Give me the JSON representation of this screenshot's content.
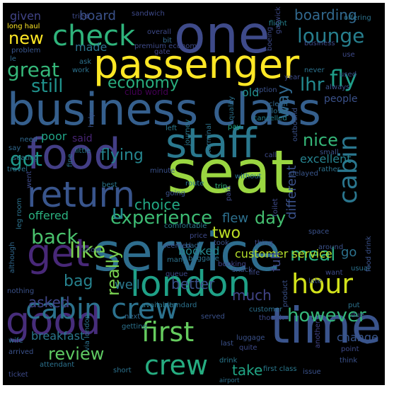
{
  "words": [
    {
      "text": "seat",
      "color": "#9ad641"
    },
    {
      "text": "service",
      "color": "#2e6d8e"
    },
    {
      "text": "time",
      "color": "#3a548c"
    },
    {
      "text": "one",
      "color": "#3e4a89"
    },
    {
      "text": "business class",
      "color": "#355f8d"
    },
    {
      "text": "passenger",
      "color": "#fde725"
    },
    {
      "text": "food",
      "color": "#433e85"
    },
    {
      "text": "staff",
      "color": "#2a788e"
    },
    {
      "text": "london",
      "color": "#1fa187"
    },
    {
      "text": "good",
      "color": "#472d7b"
    },
    {
      "text": "get",
      "color": "#482878"
    },
    {
      "text": "return",
      "color": "#39558c"
    },
    {
      "text": "cabin crew",
      "color": "#2c728e"
    },
    {
      "text": "check",
      "color": "#2fb47c"
    },
    {
      "text": "hour",
      "color": "#d2e21b"
    },
    {
      "text": "crew",
      "color": "#26ad81"
    },
    {
      "text": "first",
      "color": "#65cb5e"
    },
    {
      "text": "airport",
      "color": "#2d708e"
    },
    {
      "text": "cabin",
      "color": "#2a768e"
    },
    {
      "text": "lounge",
      "color": "#277f8e"
    },
    {
      "text": "economy",
      "color": "#29af7f"
    },
    {
      "text": "experience",
      "color": "#3dbc74"
    },
    {
      "text": "back",
      "color": "#4ac16d"
    },
    {
      "text": "however",
      "color": "#34b679"
    },
    {
      "text": "like",
      "color": "#7ad151"
    },
    {
      "text": "review",
      "color": "#5ec962"
    },
    {
      "text": "fly",
      "color": "#1f9e89"
    },
    {
      "text": "lhr",
      "color": "#23898e"
    },
    {
      "text": "new",
      "color": "#fde725"
    },
    {
      "text": "great",
      "color": "#35b779"
    },
    {
      "text": "still",
      "color": "#20928c"
    },
    {
      "text": "boarding",
      "color": "#31688e"
    },
    {
      "text": "choice",
      "color": "#22a884"
    },
    {
      "text": "day",
      "color": "#44bf70"
    },
    {
      "text": "meal",
      "color": "#2ab07f"
    },
    {
      "text": "flying",
      "color": "#25858e"
    },
    {
      "text": "nice",
      "color": "#35b779"
    },
    {
      "text": "got",
      "color": "#1f9a8a"
    },
    {
      "text": "really",
      "color": "#7ad151"
    },
    {
      "text": "two",
      "color": "#bddf26"
    },
    {
      "text": "bag",
      "color": "#26828e"
    },
    {
      "text": "asked",
      "color": "#404688"
    },
    {
      "text": "much",
      "color": "#414487"
    },
    {
      "text": "well",
      "color": "#2a788e"
    },
    {
      "text": "better",
      "color": "#3b528b"
    },
    {
      "text": "way",
      "color": "#31688e"
    },
    {
      "text": "u",
      "color": "#23898e"
    },
    {
      "text": "offered",
      "color": "#2ab07f"
    },
    {
      "text": "flew",
      "color": "#2d708e"
    },
    {
      "text": "board",
      "color": "#3b528b"
    },
    {
      "text": "given",
      "color": "#414487"
    },
    {
      "text": "made",
      "color": "#2c728e"
    },
    {
      "text": "old",
      "color": "#21908d"
    },
    {
      "text": "people",
      "color": "#3b528b"
    },
    {
      "text": "poor",
      "color": "#20a386"
    },
    {
      "text": "said",
      "color": "#482475"
    },
    {
      "text": "excellent",
      "color": "#26828e"
    },
    {
      "text": "booked",
      "color": "#24868e"
    },
    {
      "text": "customer service",
      "color": "#b5de2b"
    },
    {
      "text": "different",
      "color": "#3b528b"
    },
    {
      "text": "breakfast",
      "color": "#2a788e"
    },
    {
      "text": "take",
      "color": "#21a585"
    },
    {
      "text": "go",
      "color": "#2c728e"
    },
    {
      "text": "full",
      "color": "#3e4a89"
    },
    {
      "text": "club world",
      "color": "#440154"
    },
    {
      "text": "premium economy",
      "color": "#3e4a89"
    },
    {
      "text": "long haul",
      "color": "#fde725"
    },
    {
      "text": "overall",
      "color": "#3e4a89"
    },
    {
      "text": "gate",
      "color": "#414487"
    },
    {
      "text": "bit",
      "color": "#31688e"
    },
    {
      "text": "sandwich",
      "color": "#3e4a89"
    },
    {
      "text": "flight",
      "color": "#26828e"
    },
    {
      "text": "le",
      "color": "#31688e"
    },
    {
      "text": "work",
      "color": "#2c728e"
    },
    {
      "text": "problem",
      "color": "#39568c"
    },
    {
      "text": "business",
      "color": "#3e4a89"
    },
    {
      "text": "option",
      "color": "#3b528b"
    },
    {
      "text": "clean",
      "color": "#31688e"
    },
    {
      "text": "flown",
      "color": "#2c728e"
    },
    {
      "text": "cancelled",
      "color": "#26828e"
    },
    {
      "text": "left",
      "color": "#2a788e"
    },
    {
      "text": "pay",
      "color": "#20a386"
    },
    {
      "text": "seating",
      "color": "#2a788e"
    },
    {
      "text": "travel",
      "color": "#2c728e"
    },
    {
      "text": "little",
      "color": "#2a788e"
    },
    {
      "text": "need",
      "color": "#31688e"
    },
    {
      "text": "say",
      "color": "#31688e"
    },
    {
      "text": "minute",
      "color": "#3b528b"
    },
    {
      "text": "delayed",
      "color": "#39568c"
    },
    {
      "text": "call",
      "color": "#3e4a89"
    },
    {
      "text": "small",
      "color": "#3b528b"
    },
    {
      "text": "rather",
      "color": "#2c728e"
    },
    {
      "text": "without",
      "color": "#2c728e"
    },
    {
      "text": "route",
      "color": "#2a788e"
    },
    {
      "text": "trip",
      "color": "#35b779"
    },
    {
      "text": "going",
      "color": "#3b528b"
    },
    {
      "text": "best",
      "color": "#2a788e"
    },
    {
      "text": "comfortable",
      "color": "#2a788e"
    },
    {
      "text": "thing",
      "color": "#3e4a89"
    },
    {
      "text": "space",
      "color": "#3b528b"
    },
    {
      "text": "price",
      "color": "#3e4a89"
    },
    {
      "text": "took",
      "color": "#3b528b"
    },
    {
      "text": "around",
      "color": "#3b528b"
    },
    {
      "text": "want",
      "color": "#3e4a89"
    },
    {
      "text": "usual",
      "color": "#2c728e"
    },
    {
      "text": "booking",
      "color": "#414487"
    },
    {
      "text": "baggage",
      "color": "#2c728e"
    },
    {
      "text": "queue",
      "color": "#3e4a89"
    },
    {
      "text": "available",
      "color": "#2a788e"
    },
    {
      "text": "standard",
      "color": "#2c728e"
    },
    {
      "text": "next",
      "color": "#31688e"
    },
    {
      "text": "getting",
      "color": "#2c728e"
    },
    {
      "text": "served",
      "color": "#3b528b"
    },
    {
      "text": "customer",
      "color": "#2c728e"
    },
    {
      "text": "though",
      "color": "#3e4a89"
    },
    {
      "text": "luggage",
      "color": "#3b528b"
    },
    {
      "text": "quite",
      "color": "#3e4a89"
    },
    {
      "text": "last",
      "color": "#3b528b"
    },
    {
      "text": "another",
      "color": "#414487"
    },
    {
      "text": "change",
      "color": "#39568c"
    },
    {
      "text": "point",
      "color": "#3e4a89"
    },
    {
      "text": "think",
      "color": "#3b528b"
    },
    {
      "text": "put",
      "color": "#2c728e"
    },
    {
      "text": "due",
      "color": "#3e4a89"
    },
    {
      "text": "late",
      "color": "#3b528b"
    },
    {
      "text": "drink",
      "color": "#2a788e"
    },
    {
      "text": "first class",
      "color": "#2a788e"
    },
    {
      "text": "issue",
      "color": "#3b528b"
    },
    {
      "text": "ticket",
      "color": "#3e4a89"
    },
    {
      "text": "attendant",
      "color": "#2c728e"
    },
    {
      "text": "arrived",
      "color": "#3b528b"
    },
    {
      "text": "wife",
      "color": "#2c728e"
    },
    {
      "text": "nothing",
      "color": "#3b528b"
    },
    {
      "text": "although",
      "color": "#31688e"
    },
    {
      "text": "short",
      "color": "#2c728e"
    },
    {
      "text": "toilet",
      "color": "#3e4a89"
    },
    {
      "text": "snack",
      "color": "#3b528b"
    },
    {
      "text": "never",
      "color": "#2c728e"
    },
    {
      "text": "always",
      "color": "#3b528b"
    },
    {
      "text": "year",
      "color": "#3e4a89"
    },
    {
      "text": "used",
      "color": "#3b528b"
    },
    {
      "text": "use",
      "color": "#3e4a89"
    },
    {
      "text": "offering",
      "color": "#2c728e"
    },
    {
      "text": "leg room",
      "color": "#2c728e"
    },
    {
      "text": "food drink",
      "color": "#3b528b"
    },
    {
      "text": "via london",
      "color": "#2c728e"
    },
    {
      "text": "gatwick",
      "color": "#3e4a89"
    },
    {
      "text": "outbound",
      "color": "#3b528b"
    },
    {
      "text": "quality",
      "color": "#2c728e"
    },
    {
      "text": "journey",
      "color": "#2a788e"
    },
    {
      "text": "terminal",
      "color": "#2c728e"
    },
    {
      "text": "seemed",
      "color": "#3b528b"
    },
    {
      "text": "bad",
      "color": "#31688e"
    },
    {
      "text": "life",
      "color": "#3e4a89"
    },
    {
      "text": "tried",
      "color": "#3e4a89"
    },
    {
      "text": "ask",
      "color": "#2c728e"
    },
    {
      "text": "help",
      "color": "#3b528b"
    },
    {
      "text": "fine",
      "color": "#2c728e"
    },
    {
      "text": "went",
      "color": "#3e4a89"
    },
    {
      "text": "know",
      "color": "#3b528b"
    },
    {
      "text": "many",
      "color": "#2c728e"
    },
    {
      "text": "paid",
      "color": "#3e4a89"
    },
    {
      "text": "product",
      "color": "#3b528b"
    },
    {
      "text": "boeing",
      "color": "#3e4a89"
    }
  ]
}
